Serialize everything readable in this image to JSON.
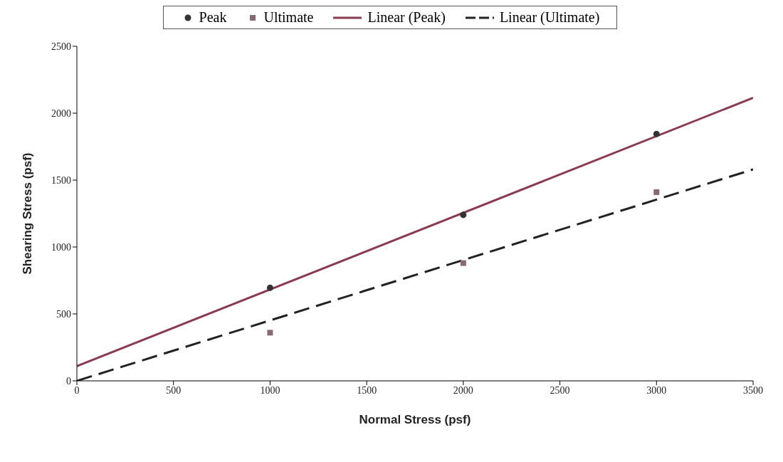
{
  "chart_data": {
    "type": "scatter",
    "xlabel": "Normal Stress (psf)",
    "ylabel": "Shearing Stress (psf)",
    "xlim": [
      0,
      3500
    ],
    "ylim": [
      0,
      2500
    ],
    "xticks": [
      0,
      500,
      1000,
      1500,
      2000,
      2500,
      3000,
      3500
    ],
    "yticks": [
      0,
      500,
      1000,
      1500,
      2000,
      2500
    ],
    "legend": "top",
    "series": [
      {
        "name": "Peak",
        "marker": "circle",
        "color": "#333333",
        "x": [
          1000,
          2000,
          3000
        ],
        "values": [
          695,
          1240,
          1845
        ]
      },
      {
        "name": "Ultimate",
        "marker": "square",
        "color": "#8a6a72",
        "x": [
          1000,
          2000,
          3000
        ],
        "values": [
          360,
          880,
          1410
        ]
      },
      {
        "name": "Linear (Peak)",
        "type": "line",
        "line_style": "solid",
        "color": "#8b3a50",
        "x": [
          0,
          3500
        ],
        "values": [
          110,
          2115
        ]
      },
      {
        "name": "Linear (Ultimate)",
        "type": "line",
        "line_style": "dashed",
        "color": "#222222",
        "x": [
          0,
          3500
        ],
        "values": [
          0,
          1580
        ]
      }
    ]
  }
}
